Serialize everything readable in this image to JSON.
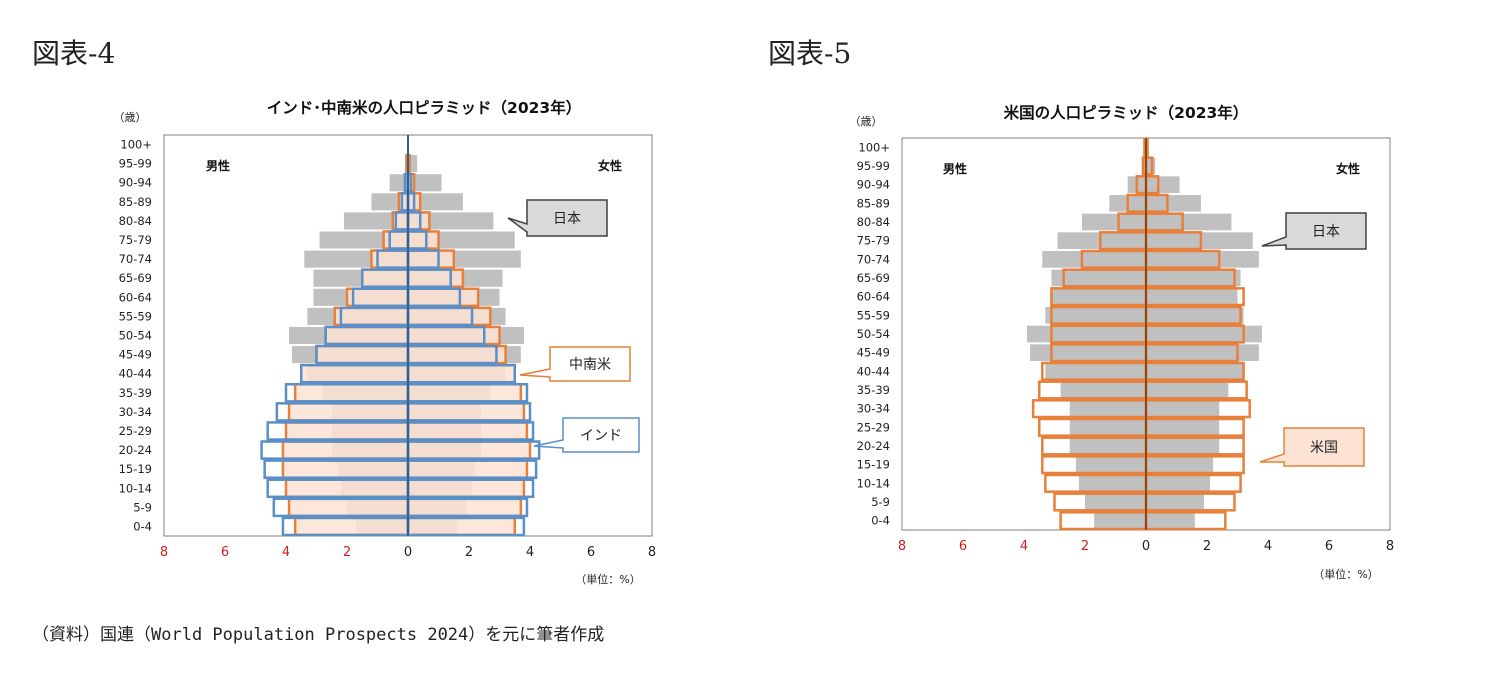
{
  "figures": {
    "fig4_label": "図表-4",
    "fig5_label": "図表-5"
  },
  "source": "（資料）国連（World Population Prospects 2024）を元に筆者作成",
  "chart_data": [
    {
      "type": "bar",
      "orientation": "horizontal-pyramid",
      "title": "インド･中南米の人口ピラミッド（2023年）",
      "y_unit": "（歳）",
      "x_unit": "（単位：%）",
      "left_label": "男性",
      "right_label": "女性",
      "x_ticks": [
        "8",
        "6",
        "4",
        "2",
        "0",
        "2",
        "4",
        "6",
        "8"
      ],
      "xlim": [
        -8,
        8
      ],
      "categories": [
        "100+",
        "95-99",
        "90-94",
        "85-89",
        "80-84",
        "75-79",
        "70-74",
        "65-69",
        "60-64",
        "55-59",
        "50-54",
        "45-49",
        "40-44",
        "35-39",
        "30-34",
        "25-29",
        "20-24",
        "15-19",
        "10-14",
        "5-9",
        "0-4"
      ],
      "series": [
        {
          "name": "日本",
          "style": "filled-gray",
          "male": [
            0.0,
            0.1,
            0.6,
            1.2,
            2.1,
            2.9,
            3.4,
            3.1,
            3.1,
            3.3,
            3.9,
            3.8,
            3.3,
            2.8,
            2.5,
            2.5,
            2.5,
            2.3,
            2.2,
            2.0,
            1.7
          ],
          "female": [
            0.0,
            0.3,
            1.1,
            1.8,
            2.8,
            3.5,
            3.7,
            3.1,
            3.0,
            3.2,
            3.8,
            3.7,
            3.2,
            2.7,
            2.4,
            2.4,
            2.4,
            2.2,
            2.1,
            1.9,
            1.6
          ]
        },
        {
          "name": "中南米",
          "style": "orange-outline",
          "male": [
            0.0,
            0.05,
            0.1,
            0.3,
            0.5,
            0.8,
            1.2,
            1.5,
            2.0,
            2.4,
            2.7,
            3.0,
            3.5,
            3.7,
            3.9,
            4.0,
            4.1,
            4.1,
            4.0,
            3.9,
            3.7
          ],
          "female": [
            0.0,
            0.05,
            0.2,
            0.4,
            0.7,
            1.0,
            1.5,
            1.8,
            2.3,
            2.7,
            3.0,
            3.2,
            3.5,
            3.7,
            3.8,
            3.9,
            4.0,
            3.9,
            3.8,
            3.7,
            3.5
          ]
        },
        {
          "name": "インド",
          "style": "blue-outline",
          "male": [
            0.0,
            0.0,
            0.1,
            0.2,
            0.4,
            0.6,
            1.0,
            1.5,
            1.8,
            2.2,
            2.7,
            3.0,
            3.5,
            4.0,
            4.3,
            4.6,
            4.8,
            4.7,
            4.6,
            4.4,
            4.1
          ],
          "female": [
            0.0,
            0.0,
            0.1,
            0.2,
            0.4,
            0.6,
            1.0,
            1.4,
            1.7,
            2.1,
            2.5,
            2.9,
            3.5,
            3.9,
            4.0,
            4.1,
            4.3,
            4.2,
            4.1,
            3.9,
            3.8
          ]
        }
      ],
      "callouts": [
        "日本",
        "中南米",
        "インド"
      ],
      "colors": {
        "japan_fill": "#c0c0c0",
        "latam": "#e6803a",
        "latam_fill": "#fde3d3",
        "india": "#5b8fc7",
        "axis_line": "#2e5f96",
        "neg_tick": "#d02020"
      }
    },
    {
      "type": "bar",
      "orientation": "horizontal-pyramid",
      "title": "米国の人口ピラミッド（2023年）",
      "y_unit": "（歳）",
      "x_unit": "（単位：%）",
      "left_label": "男性",
      "right_label": "女性",
      "x_ticks": [
        "8",
        "6",
        "4",
        "2",
        "0",
        "2",
        "4",
        "6",
        "8"
      ],
      "xlim": [
        -8,
        8
      ],
      "categories": [
        "100+",
        "95-99",
        "90-94",
        "85-89",
        "80-84",
        "75-79",
        "70-74",
        "65-69",
        "60-64",
        "55-59",
        "50-54",
        "45-49",
        "40-44",
        "35-39",
        "30-34",
        "25-29",
        "20-24",
        "15-19",
        "10-14",
        "5-9",
        "0-4"
      ],
      "series": [
        {
          "name": "日本",
          "style": "filled-gray",
          "male": [
            0.0,
            0.1,
            0.6,
            1.2,
            2.1,
            2.9,
            3.4,
            3.1,
            3.1,
            3.3,
            3.9,
            3.8,
            3.3,
            2.8,
            2.5,
            2.5,
            2.5,
            2.3,
            2.2,
            2.0,
            1.7
          ],
          "female": [
            0.0,
            0.3,
            1.1,
            1.8,
            2.8,
            3.5,
            3.7,
            3.1,
            3.0,
            3.2,
            3.8,
            3.7,
            3.2,
            2.7,
            2.4,
            2.4,
            2.4,
            2.2,
            2.1,
            1.9,
            1.6
          ]
        },
        {
          "name": "米国",
          "style": "orange-outline",
          "male": [
            0.05,
            0.1,
            0.3,
            0.6,
            0.9,
            1.5,
            2.1,
            2.7,
            3.1,
            3.1,
            3.1,
            3.1,
            3.4,
            3.5,
            3.7,
            3.5,
            3.4,
            3.4,
            3.3,
            3.0,
            2.8
          ],
          "female": [
            0.05,
            0.2,
            0.4,
            0.7,
            1.2,
            1.8,
            2.4,
            2.9,
            3.2,
            3.1,
            3.2,
            3.0,
            3.2,
            3.3,
            3.4,
            3.2,
            3.2,
            3.2,
            3.1,
            2.9,
            2.6
          ]
        }
      ],
      "callouts": [
        "日本",
        "米国"
      ],
      "colors": {
        "japan_fill": "#c0c0c0",
        "us": "#e6803a",
        "us_fill": "#fde3d3",
        "axis_line": "#8a4a1a",
        "neg_tick": "#d02020"
      }
    }
  ]
}
